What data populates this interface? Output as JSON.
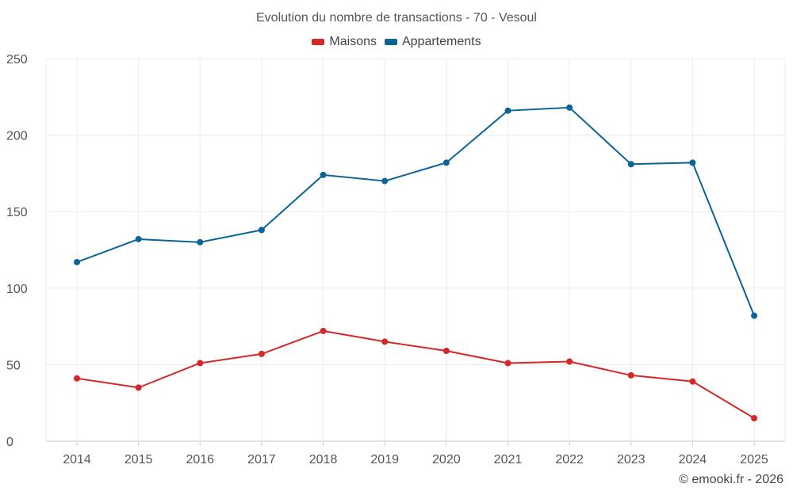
{
  "chart_data": {
    "type": "line",
    "title": "Evolution du nombre de transactions - 70 - Vesoul",
    "categories": [
      "2014",
      "2015",
      "2016",
      "2017",
      "2018",
      "2019",
      "2020",
      "2021",
      "2022",
      "2023",
      "2024",
      "2025"
    ],
    "series": [
      {
        "name": "Maisons",
        "color": "#d62728",
        "values": [
          41,
          35,
          51,
          57,
          72,
          65,
          59,
          51,
          52,
          43,
          39,
          15
        ]
      },
      {
        "name": "Appartements",
        "color": "#0a6496",
        "values": [
          117,
          132,
          130,
          138,
          174,
          170,
          182,
          216,
          218,
          181,
          182,
          82
        ]
      }
    ],
    "ylim": [
      0,
      250
    ],
    "yticks": [
      0,
      50,
      100,
      150,
      200,
      250
    ],
    "xlabel": "",
    "ylabel": "",
    "grid": true,
    "legend_position": "top-center"
  },
  "footer": {
    "copyright": "© emooki.fr - 2026"
  }
}
